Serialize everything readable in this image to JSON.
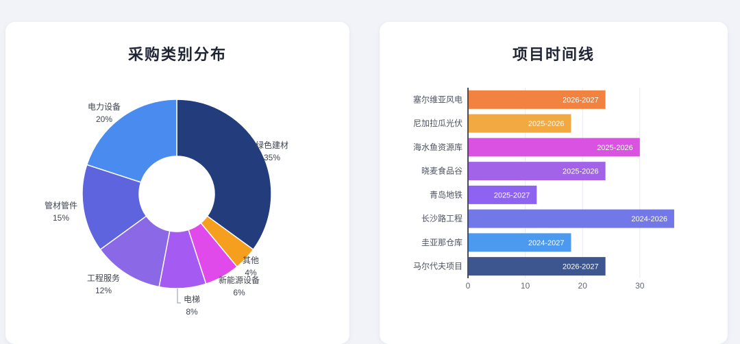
{
  "page": {
    "background_color": "#f1f3f8",
    "card_background_color": "#ffffff"
  },
  "cards": [
    {
      "title": "采购类别分布"
    },
    {
      "title": "项目时间线"
    }
  ],
  "chart_data": [
    {
      "type": "pie",
      "title": "采购类别分布",
      "donut": true,
      "legend_position": "none",
      "series": [
        {
          "name": "绿色建材",
          "value": 35,
          "pct_label": "35%",
          "color": "#223c7c"
        },
        {
          "name": "其他",
          "value": 4,
          "pct_label": "4%",
          "color": "#f69e1d"
        },
        {
          "name": "新能源设备",
          "value": 6,
          "pct_label": "6%",
          "color": "#e04aea"
        },
        {
          "name": "电梯",
          "value": 8,
          "pct_label": "8%",
          "color": "#a55af2"
        },
        {
          "name": "工程服务",
          "value": 12,
          "pct_label": "12%",
          "color": "#8b69e6"
        },
        {
          "name": "管材管件",
          "value": 15,
          "pct_label": "15%",
          "color": "#5d64dd"
        },
        {
          "name": "电力设备",
          "value": 20,
          "pct_label": "20%",
          "color": "#4a8bf0"
        }
      ],
      "unit": "%"
    },
    {
      "type": "bar",
      "title": "项目时间线",
      "orientation": "horizontal",
      "grid": true,
      "legend_position": "none",
      "categories": [
        "塞尔维亚风电",
        "尼加拉瓜光伏",
        "海水鱼资源库",
        "晓麦食品谷",
        "青岛地铁",
        "长沙路工程",
        "圭亚那仓库",
        "马尔代夫项目"
      ],
      "values": [
        24,
        18,
        30,
        24,
        12,
        36,
        18,
        24
      ],
      "bar_labels": [
        "2026-2027",
        "2025-2026",
        "2025-2026",
        "2025-2026",
        "2025-2027",
        "2024-2026",
        "2024-2027",
        "2026-2027"
      ],
      "colors": [
        "#f2823f",
        "#f2a942",
        "#da52e2",
        "#a263e9",
        "#8f63f1",
        "#7378e8",
        "#4b9af0",
        "#3d5690"
      ],
      "x_ticks": [
        0,
        10,
        20,
        30
      ],
      "x_tick_labels": [
        "0",
        "10",
        "20",
        "30"
      ],
      "xlim": [
        0,
        36
      ],
      "xlabel": "",
      "ylabel": ""
    }
  ]
}
